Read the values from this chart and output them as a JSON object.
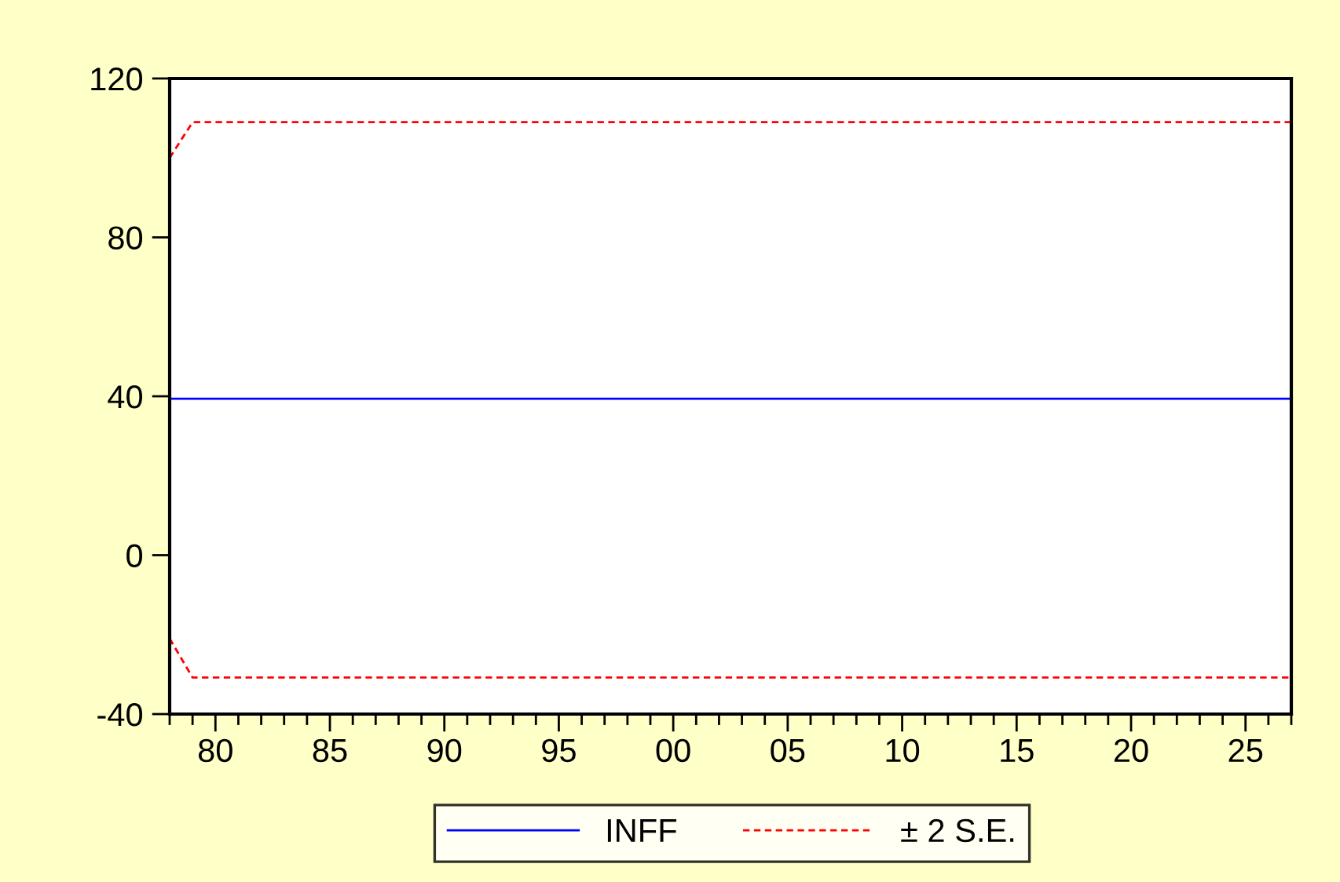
{
  "chart_data": {
    "type": "line",
    "x": [
      1978,
      2027
    ],
    "series": [
      {
        "name": "INFF",
        "color": "#0000ff",
        "line_style": "solid",
        "values": [
          39.4,
          39.4
        ]
      },
      {
        "name": "± 2 S.E.",
        "color": "#ff0000",
        "line_style": "dashed",
        "x": [
          1978,
          1979,
          2027
        ],
        "values": [
          100,
          109,
          109
        ]
      },
      {
        "color": "#ff0000",
        "line_style": "dashed",
        "x": [
          1978,
          1979,
          2027
        ],
        "values": [
          -21,
          -30.8,
          -30.8
        ]
      }
    ],
    "xlim": [
      1978,
      2027
    ],
    "xticks": [
      {
        "value": 1978,
        "label": null
      },
      {
        "value": 1979,
        "label": null
      },
      {
        "value": 1980,
        "label": "80"
      },
      {
        "value": 1981,
        "label": null
      },
      {
        "value": 1982,
        "label": null
      },
      {
        "value": 1983,
        "label": null
      },
      {
        "value": 1984,
        "label": null
      },
      {
        "value": 1985,
        "label": "85"
      },
      {
        "value": 1986,
        "label": null
      },
      {
        "value": 1987,
        "label": null
      },
      {
        "value": 1988,
        "label": null
      },
      {
        "value": 1989,
        "label": null
      },
      {
        "value": 1990,
        "label": "90"
      },
      {
        "value": 1991,
        "label": null
      },
      {
        "value": 1992,
        "label": null
      },
      {
        "value": 1993,
        "label": null
      },
      {
        "value": 1994,
        "label": null
      },
      {
        "value": 1995,
        "label": "95"
      },
      {
        "value": 1996,
        "label": null
      },
      {
        "value": 1997,
        "label": null
      },
      {
        "value": 1998,
        "label": null
      },
      {
        "value": 1999,
        "label": null
      },
      {
        "value": 2000,
        "label": "00"
      },
      {
        "value": 2001,
        "label": null
      },
      {
        "value": 2002,
        "label": null
      },
      {
        "value": 2003,
        "label": null
      },
      {
        "value": 2004,
        "label": null
      },
      {
        "value": 2005,
        "label": "05"
      },
      {
        "value": 2006,
        "label": null
      },
      {
        "value": 2007,
        "label": null
      },
      {
        "value": 2008,
        "label": null
      },
      {
        "value": 2009,
        "label": null
      },
      {
        "value": 2010,
        "label": "10"
      },
      {
        "value": 2011,
        "label": null
      },
      {
        "value": 2012,
        "label": null
      },
      {
        "value": 2013,
        "label": null
      },
      {
        "value": 2014,
        "label": null
      },
      {
        "value": 2015,
        "label": "15"
      },
      {
        "value": 2016,
        "label": null
      },
      {
        "value": 2017,
        "label": null
      },
      {
        "value": 2018,
        "label": null
      },
      {
        "value": 2019,
        "label": null
      },
      {
        "value": 2020,
        "label": "20"
      },
      {
        "value": 2021,
        "label": null
      },
      {
        "value": 2022,
        "label": null
      },
      {
        "value": 2023,
        "label": null
      },
      {
        "value": 2024,
        "label": null
      },
      {
        "value": 2025,
        "label": "25"
      },
      {
        "value": 2026,
        "label": null
      },
      {
        "value": 2027,
        "label": null
      }
    ],
    "ylim": [
      -40,
      120
    ],
    "yticks": [
      -40,
      0,
      40,
      80,
      120
    ],
    "grid": false,
    "marker": "none",
    "legend": "bottom"
  }
}
